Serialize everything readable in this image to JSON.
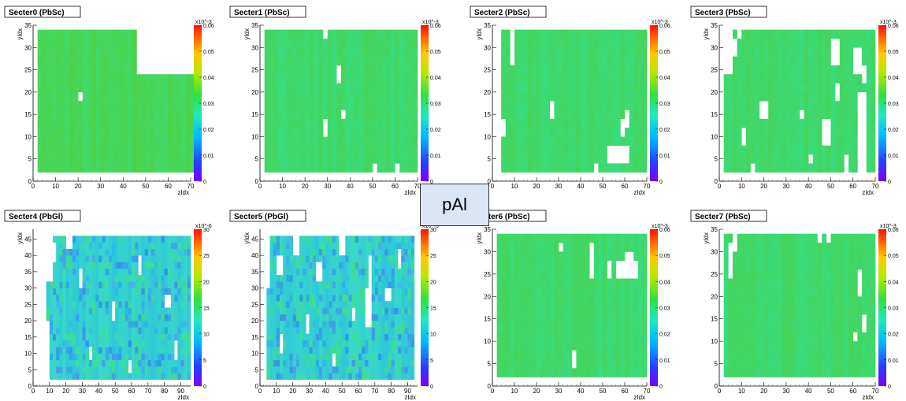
{
  "center_label": "pAl",
  "chart_data": [
    {
      "type": "heatmap",
      "title": "Secter0 (PbSc)",
      "xlabel": "zIdx",
      "ylabel": "yIdx",
      "xlim": [
        0,
        70
      ],
      "ylim": [
        0,
        35
      ],
      "xticks": [
        0,
        10,
        20,
        30,
        40,
        50,
        60,
        70
      ],
      "yticks": [
        0,
        5,
        10,
        15,
        20,
        25,
        30,
        35
      ],
      "color_scale_exponent": "x10^-3",
      "zlim": [
        0,
        0.06
      ],
      "zticks": [
        "0",
        "0.01",
        "0.02",
        "0.03",
        "0.04",
        "0.05",
        "0.06"
      ],
      "cells": {
        "x": [
          2,
          72
        ],
        "y": [
          2,
          34
        ]
      },
      "base_color": "#46d65a",
      "holes": [
        [
          46,
          72,
          23,
          34
        ],
        [
          20,
          22,
          18,
          20
        ],
        [
          45,
          47,
          32,
          34
        ]
      ]
    },
    {
      "type": "heatmap",
      "title": "Secter1 (PbSc)",
      "xlabel": "zIdx",
      "ylabel": "yIdx",
      "xlim": [
        0,
        70
      ],
      "ylim": [
        0,
        35
      ],
      "xticks": [
        0,
        10,
        20,
        30,
        40,
        50,
        60,
        70
      ],
      "yticks": [
        0,
        5,
        10,
        15,
        20,
        25,
        30,
        35
      ],
      "color_scale_exponent": "x10^-3",
      "zlim": [
        0,
        0.06
      ],
      "zticks": [
        "0",
        "0.01",
        "0.02",
        "0.03",
        "0.04",
        "0.05",
        "0.06"
      ],
      "cells": {
        "x": [
          2,
          70
        ],
        "y": [
          2,
          34
        ]
      },
      "base_color": "#3fd86c",
      "holes": [
        [
          34,
          36,
          22,
          26
        ],
        [
          36,
          38,
          14,
          16
        ],
        [
          28,
          30,
          10,
          14
        ],
        [
          27,
          29,
          32,
          34
        ],
        [
          60,
          62,
          2,
          4
        ],
        [
          50,
          52,
          2,
          3
        ]
      ]
    },
    {
      "type": "heatmap",
      "title": "Secter2 (PbSc)",
      "xlabel": "zIdx",
      "ylabel": "yIdx",
      "xlim": [
        0,
        70
      ],
      "ylim": [
        0,
        35
      ],
      "xticks": [
        0,
        10,
        20,
        30,
        40,
        50,
        60,
        70
      ],
      "yticks": [
        0,
        5,
        10,
        15,
        20,
        25,
        30,
        35
      ],
      "color_scale_exponent": "x10^-3",
      "zlim": [
        0,
        0.06
      ],
      "zticks": [
        "0",
        "0.01",
        "0.02",
        "0.03",
        "0.04",
        "0.05",
        "0.06"
      ],
      "cells": {
        "x": [
          2,
          70
        ],
        "y": [
          2,
          34
        ]
      },
      "base_color": "#3fd86c",
      "holes": [
        [
          2,
          4,
          2,
          34
        ],
        [
          7,
          9,
          25,
          34
        ],
        [
          4,
          6,
          10,
          14
        ],
        [
          25,
          27,
          14,
          18
        ],
        [
          52,
          62,
          4,
          8
        ],
        [
          58,
          60,
          10,
          14
        ],
        [
          60,
          62,
          12,
          16
        ],
        [
          46,
          48,
          2,
          4
        ]
      ]
    },
    {
      "type": "heatmap",
      "title": "Secter3 (PbSc)",
      "xlabel": "zIdx",
      "ylabel": "yIdx",
      "xlim": [
        0,
        70
      ],
      "ylim": [
        0,
        35
      ],
      "xticks": [
        0,
        10,
        20,
        30,
        40,
        50,
        60,
        70
      ],
      "yticks": [
        0,
        5,
        10,
        15,
        20,
        25,
        30,
        35
      ],
      "color_scale_exponent": "x10^-3",
      "zlim": [
        0,
        0.06
      ],
      "zticks": [
        "0",
        "0.01",
        "0.02",
        "0.03",
        "0.04",
        "0.05",
        "0.06"
      ],
      "cells": {
        "x": [
          2,
          70
        ],
        "y": [
          2,
          34
        ]
      },
      "base_color": "#3fd86c",
      "holes": [
        [
          2,
          5,
          24,
          34
        ],
        [
          5,
          8,
          28,
          32
        ],
        [
          8,
          10,
          32,
          34
        ],
        [
          18,
          22,
          14,
          17
        ],
        [
          20,
          22,
          16,
          18
        ],
        [
          50,
          54,
          26,
          32
        ],
        [
          52,
          54,
          18,
          22
        ],
        [
          60,
          64,
          24,
          30
        ],
        [
          64,
          66,
          22,
          26
        ],
        [
          62,
          66,
          2,
          20
        ],
        [
          10,
          12,
          8,
          12
        ],
        [
          36,
          38,
          14,
          16
        ],
        [
          46,
          50,
          8,
          14
        ],
        [
          56,
          58,
          2,
          6
        ],
        [
          14,
          16,
          2,
          4
        ],
        [
          40,
          42,
          4,
          6
        ]
      ]
    },
    {
      "type": "heatmap",
      "title": "Secter4 (PbGl)",
      "xlabel": "zIdx",
      "ylabel": "yIdx",
      "xlim": [
        0,
        96
      ],
      "ylim": [
        0,
        48
      ],
      "xticks": [
        0,
        10,
        20,
        30,
        40,
        50,
        60,
        70,
        80,
        90
      ],
      "yticks": [
        0,
        5,
        10,
        15,
        20,
        25,
        30,
        35,
        40,
        45
      ],
      "color_scale_exponent": "x10^-6",
      "zlim": [
        0,
        30
      ],
      "zticks": [
        "0",
        "5",
        "10",
        "15",
        "20",
        "25",
        "30"
      ],
      "cells": {
        "x": [
          8,
          96
        ],
        "y": [
          2,
          46
        ]
      },
      "base_color": "#34d0d0",
      "style": "noisy",
      "holes": [
        [
          8,
          12,
          32,
          46
        ],
        [
          8,
          10,
          2,
          20
        ],
        [
          12,
          14,
          38,
          44
        ],
        [
          20,
          24,
          42,
          46
        ],
        [
          28,
          30,
          30,
          36
        ],
        [
          48,
          50,
          20,
          26
        ],
        [
          64,
          66,
          34,
          40
        ],
        [
          80,
          84,
          24,
          28
        ],
        [
          86,
          88,
          8,
          14
        ],
        [
          34,
          36,
          8,
          12
        ],
        [
          58,
          60,
          4,
          8
        ]
      ]
    },
    {
      "type": "heatmap",
      "title": "Secter5 (PbGl)",
      "xlabel": "zIdx",
      "ylabel": "yIdx",
      "xlim": [
        0,
        96
      ],
      "ylim": [
        0,
        48
      ],
      "xticks": [
        0,
        10,
        20,
        30,
        40,
        50,
        60,
        70,
        80,
        90
      ],
      "yticks": [
        0,
        5,
        10,
        15,
        20,
        25,
        30,
        35,
        40,
        45
      ],
      "color_scale_exponent": "x10^-6",
      "zlim": [
        0,
        30
      ],
      "zticks": [
        "0",
        "5",
        "10",
        "15",
        "20",
        "25",
        "30"
      ],
      "cells": {
        "x": [
          4,
          94
        ],
        "y": [
          2,
          46
        ]
      },
      "base_color": "#34d0d0",
      "style": "noisy",
      "holes": [
        [
          4,
          6,
          30,
          46
        ],
        [
          10,
          14,
          34,
          40
        ],
        [
          20,
          24,
          40,
          46
        ],
        [
          34,
          38,
          32,
          38
        ],
        [
          48,
          52,
          40,
          46
        ],
        [
          64,
          68,
          18,
          30
        ],
        [
          66,
          68,
          30,
          40
        ],
        [
          76,
          80,
          26,
          30
        ],
        [
          12,
          14,
          10,
          16
        ],
        [
          28,
          30,
          16,
          22
        ],
        [
          44,
          46,
          6,
          10
        ],
        [
          56,
          58,
          20,
          24
        ],
        [
          84,
          86,
          36,
          42
        ]
      ]
    },
    {
      "type": "heatmap",
      "title": "Secter6 (PbSc)",
      "xlabel": "zIdx",
      "ylabel": "yIdx",
      "xlim": [
        0,
        70
      ],
      "ylim": [
        0,
        35
      ],
      "xticks": [
        0,
        10,
        20,
        30,
        40,
        50,
        60,
        70
      ],
      "yticks": [
        0,
        5,
        10,
        15,
        20,
        25,
        30,
        35
      ],
      "color_scale_exponent": "x10^-3",
      "zlim": [
        0,
        0.06
      ],
      "zticks": [
        "0",
        "0.01",
        "0.02",
        "0.03",
        "0.04",
        "0.05",
        "0.06"
      ],
      "cells": {
        "x": [
          2,
          70
        ],
        "y": [
          2,
          34
        ]
      },
      "base_color": "#3fd86c",
      "holes": [
        [
          44,
          46,
          24,
          32
        ],
        [
          52,
          54,
          24,
          28
        ],
        [
          56,
          66,
          24,
          28
        ],
        [
          60,
          64,
          26,
          30
        ],
        [
          36,
          38,
          4,
          8
        ],
        [
          30,
          32,
          30,
          32
        ]
      ]
    },
    {
      "type": "heatmap",
      "title": "Secter7 (PbSc)",
      "xlabel": "zIdx",
      "ylabel": "yIdx",
      "xlim": [
        0,
        70
      ],
      "ylim": [
        0,
        35
      ],
      "xticks": [
        0,
        10,
        20,
        30,
        40,
        50,
        60,
        70
      ],
      "yticks": [
        0,
        5,
        10,
        15,
        20,
        25,
        30,
        35
      ],
      "color_scale_exponent": "x10^-3",
      "zlim": [
        0,
        0.06
      ],
      "zticks": [
        "0",
        "0.01",
        "0.02",
        "0.03",
        "0.04",
        "0.05",
        "0.06"
      ],
      "cells": {
        "x": [
          2,
          70
        ],
        "y": [
          2,
          34
        ]
      },
      "base_color": "#3fd86c",
      "holes": [
        [
          4,
          6,
          24,
          32
        ],
        [
          6,
          8,
          30,
          34
        ],
        [
          44,
          46,
          32,
          34
        ],
        [
          48,
          50,
          32,
          34
        ],
        [
          62,
          64,
          20,
          26
        ],
        [
          60,
          62,
          10,
          12
        ],
        [
          64,
          66,
          12,
          16
        ]
      ]
    }
  ]
}
